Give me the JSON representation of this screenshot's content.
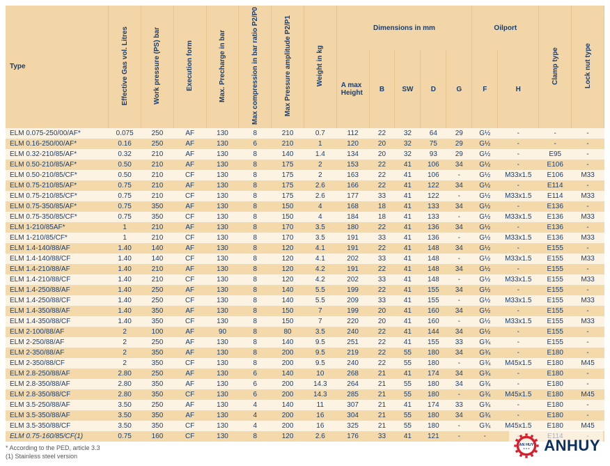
{
  "headers": {
    "type": "Type",
    "gasVol": "Effective Gas vol. Litres",
    "workPressure": "Work pressure (PS) bar",
    "execForm": "Execution form",
    "maxPrecharge": "Max. Precharge in bar",
    "maxCompression": "Max compression in bar ratio P2/P0",
    "maxPressureAmp": "Max Pressure amplitude P2/P1",
    "weight": "Weight in kg",
    "dimensions": "Dimensions in mm",
    "a": "A max Height",
    "b": "B",
    "sw": "SW",
    "d": "D",
    "g": "G",
    "oilport": "Oilport",
    "f": "F",
    "h": "H",
    "clamp": "Clamp type",
    "lock": "Lock nut type"
  },
  "rows": [
    {
      "type": "ELM 0.075-250/00/AF*",
      "gas": "0.075",
      "wp": "250",
      "ef": "AF",
      "mp": "130",
      "mc": "8",
      "mpa": "210",
      "wt": "0.7",
      "a": "112",
      "b": "22",
      "sw": "32",
      "d": "64",
      "g": "29",
      "f": "G½",
      "h": "-",
      "clamp": "-",
      "lock": "-"
    },
    {
      "type": "ELM 0.16-250/00/AF*",
      "gas": "0.16",
      "wp": "250",
      "ef": "AF",
      "mp": "130",
      "mc": "6",
      "mpa": "210",
      "wt": "1",
      "a": "120",
      "b": "20",
      "sw": "32",
      "d": "75",
      "g": "29",
      "f": "G½",
      "h": "-",
      "clamp": "-",
      "lock": "-"
    },
    {
      "type": "ELM 0.32-210/85/AF*",
      "gas": "0.32",
      "wp": "210",
      "ef": "AF",
      "mp": "130",
      "mc": "8",
      "mpa": "140",
      "wt": "1.4",
      "a": "134",
      "b": "20",
      "sw": "32",
      "d": "93",
      "g": "29",
      "f": "G½",
      "h": "-",
      "clamp": "E95",
      "lock": "-"
    },
    {
      "type": "ELM 0.50-210/85/AF*",
      "gas": "0.50",
      "wp": "210",
      "ef": "AF",
      "mp": "130",
      "mc": "8",
      "mpa": "175",
      "wt": "2",
      "a": "153",
      "b": "22",
      "sw": "41",
      "d": "106",
      "g": "34",
      "f": "G½",
      "h": "-",
      "clamp": "E106",
      "lock": "-"
    },
    {
      "type": "ELM 0.50-210/85/CF*",
      "gas": "0.50",
      "wp": "210",
      "ef": "CF",
      "mp": "130",
      "mc": "8",
      "mpa": "175",
      "wt": "2",
      "a": "163",
      "b": "22",
      "sw": "41",
      "d": "106",
      "g": "-",
      "f": "G½",
      "h": "M33x1.5",
      "clamp": "E106",
      "lock": "M33"
    },
    {
      "type": "ELM 0.75-210/85/AF*",
      "gas": "0.75",
      "wp": "210",
      "ef": "AF",
      "mp": "130",
      "mc": "8",
      "mpa": "175",
      "wt": "2.6",
      "a": "166",
      "b": "22",
      "sw": "41",
      "d": "122",
      "g": "34",
      "f": "G½",
      "h": "-",
      "clamp": "E114",
      "lock": "-"
    },
    {
      "type": "ELM 0.75-210/85/CF*",
      "gas": "0.75",
      "wp": "210",
      "ef": "CF",
      "mp": "130",
      "mc": "8",
      "mpa": "175",
      "wt": "2.6",
      "a": "177",
      "b": "33",
      "sw": "41",
      "d": "122",
      "g": "-",
      "f": "G½",
      "h": "M33x1.5",
      "clamp": "E114",
      "lock": "M33"
    },
    {
      "type": "ELM 0.75-350/85/AF*",
      "gas": "0.75",
      "wp": "350",
      "ef": "AF",
      "mp": "130",
      "mc": "8",
      "mpa": "150",
      "wt": "4",
      "a": "168",
      "b": "18",
      "sw": "41",
      "d": "133",
      "g": "34",
      "f": "G½",
      "h": "-",
      "clamp": "E136",
      "lock": "-"
    },
    {
      "type": "ELM 0.75-350/85/CF*",
      "gas": "0.75",
      "wp": "350",
      "ef": "CF",
      "mp": "130",
      "mc": "8",
      "mpa": "150",
      "wt": "4",
      "a": "184",
      "b": "18",
      "sw": "41",
      "d": "133",
      "g": "-",
      "f": "G½",
      "h": "M33x1.5",
      "clamp": "E136",
      "lock": "M33"
    },
    {
      "type": "ELM 1-210/85AF*",
      "gas": "1",
      "wp": "210",
      "ef": "AF",
      "mp": "130",
      "mc": "8",
      "mpa": "170",
      "wt": "3.5",
      "a": "180",
      "b": "22",
      "sw": "41",
      "d": "136",
      "g": "34",
      "f": "G½",
      "h": "-",
      "clamp": "E136",
      "lock": "-"
    },
    {
      "type": "ELM 1-210/85/CF*",
      "gas": "1",
      "wp": "210",
      "ef": "CF",
      "mp": "130",
      "mc": "8",
      "mpa": "170",
      "wt": "3.5",
      "a": "191",
      "b": "33",
      "sw": "41",
      "d": "136",
      "g": "-",
      "f": "G½",
      "h": "M33x1.5",
      "clamp": "E136",
      "lock": "M33"
    },
    {
      "type": "ELM 1.4-140/88/AF",
      "gas": "1.40",
      "wp": "140",
      "ef": "AF",
      "mp": "130",
      "mc": "8",
      "mpa": "120",
      "wt": "4.1",
      "a": "191",
      "b": "22",
      "sw": "41",
      "d": "148",
      "g": "34",
      "f": "G½",
      "h": "-",
      "clamp": "E155",
      "lock": "-"
    },
    {
      "type": "ELM 1.4-140/88/CF",
      "gas": "1.40",
      "wp": "140",
      "ef": "CF",
      "mp": "130",
      "mc": "8",
      "mpa": "120",
      "wt": "4.1",
      "a": "202",
      "b": "33",
      "sw": "41",
      "d": "148",
      "g": "-",
      "f": "G½",
      "h": "M33x1.5",
      "clamp": "E155",
      "lock": "M33"
    },
    {
      "type": "ELM 1.4-210/88/AF",
      "gas": "1.40",
      "wp": "210",
      "ef": "AF",
      "mp": "130",
      "mc": "8",
      "mpa": "120",
      "wt": "4.2",
      "a": "191",
      "b": "22",
      "sw": "41",
      "d": "148",
      "g": "34",
      "f": "G½",
      "h": "-",
      "clamp": "E155",
      "lock": "-"
    },
    {
      "type": "ELM 1.4-210/88/CF",
      "gas": "1.40",
      "wp": "210",
      "ef": "CF",
      "mp": "130",
      "mc": "8",
      "mpa": "120",
      "wt": "4.2",
      "a": "202",
      "b": "33",
      "sw": "41",
      "d": "148",
      "g": "-",
      "f": "G½",
      "h": "M33x1.5",
      "clamp": "E155",
      "lock": "M33"
    },
    {
      "type": "ELM 1.4-250/88/AF",
      "gas": "1.40",
      "wp": "250",
      "ef": "AF",
      "mp": "130",
      "mc": "8",
      "mpa": "140",
      "wt": "5.5",
      "a": "199",
      "b": "22",
      "sw": "41",
      "d": "155",
      "g": "34",
      "f": "G½",
      "h": "-",
      "clamp": "E155",
      "lock": "-"
    },
    {
      "type": "ELM 1.4-250/88/CF",
      "gas": "1.40",
      "wp": "250",
      "ef": "CF",
      "mp": "130",
      "mc": "8",
      "mpa": "140",
      "wt": "5.5",
      "a": "209",
      "b": "33",
      "sw": "41",
      "d": "155",
      "g": "-",
      "f": "G½",
      "h": "M33x1.5",
      "clamp": "E155",
      "lock": "M33"
    },
    {
      "type": "ELM 1.4-350/88/AF",
      "gas": "1.40",
      "wp": "350",
      "ef": "AF",
      "mp": "130",
      "mc": "8",
      "mpa": "150",
      "wt": "7",
      "a": "199",
      "b": "20",
      "sw": "41",
      "d": "160",
      "g": "34",
      "f": "G½",
      "h": "-",
      "clamp": "E155",
      "lock": "-"
    },
    {
      "type": "ELM 1.4-350/88/CF",
      "gas": "1.40",
      "wp": "350",
      "ef": "CF",
      "mp": "130",
      "mc": "8",
      "mpa": "150",
      "wt": "7",
      "a": "220",
      "b": "20",
      "sw": "41",
      "d": "160",
      "g": "-",
      "f": "G½",
      "h": "M33x1.5",
      "clamp": "E155",
      "lock": "M33"
    },
    {
      "type": "ELM 2-100/88/AF",
      "gas": "2",
      "wp": "100",
      "ef": "AF",
      "mp": "90",
      "mc": "8",
      "mpa": "80",
      "wt": "3.5",
      "a": "240",
      "b": "22",
      "sw": "41",
      "d": "144",
      "g": "34",
      "f": "G½",
      "h": "-",
      "clamp": "E155",
      "lock": "-"
    },
    {
      "type": "ELM 2-250/88/AF",
      "gas": "2",
      "wp": "250",
      "ef": "AF",
      "mp": "130",
      "mc": "8",
      "mpa": "140",
      "wt": "9.5",
      "a": "251",
      "b": "22",
      "sw": "41",
      "d": "155",
      "g": "33",
      "f": "G¾",
      "h": "-",
      "clamp": "E155",
      "lock": "-"
    },
    {
      "type": "ELM 2-350/88/AF",
      "gas": "2",
      "wp": "350",
      "ef": "AF",
      "mp": "130",
      "mc": "8",
      "mpa": "200",
      "wt": "9.5",
      "a": "219",
      "b": "22",
      "sw": "55",
      "d": "180",
      "g": "34",
      "f": "G¾",
      "h": "-",
      "clamp": "E180",
      "lock": "-"
    },
    {
      "type": "ELM 2-350/88/CF",
      "gas": "2",
      "wp": "350",
      "ef": "CF",
      "mp": "130",
      "mc": "8",
      "mpa": "200",
      "wt": "9.5",
      "a": "240",
      "b": "22",
      "sw": "55",
      "d": "180",
      "g": "-",
      "f": "G¾",
      "h": "M45x1.5",
      "clamp": "E180",
      "lock": "M45"
    },
    {
      "type": "ELM 2.8-250/88/AF",
      "gas": "2.80",
      "wp": "250",
      "ef": "AF",
      "mp": "130",
      "mc": "6",
      "mpa": "140",
      "wt": "10",
      "a": "268",
      "b": "21",
      "sw": "41",
      "d": "174",
      "g": "34",
      "f": "G¾",
      "h": "-",
      "clamp": "E180",
      "lock": "-"
    },
    {
      "type": "ELM 2.8-350/88/AF",
      "gas": "2.80",
      "wp": "350",
      "ef": "AF",
      "mp": "130",
      "mc": "6",
      "mpa": "200",
      "wt": "14.3",
      "a": "264",
      "b": "21",
      "sw": "55",
      "d": "180",
      "g": "34",
      "f": "G¾",
      "h": "-",
      "clamp": "E180",
      "lock": "-"
    },
    {
      "type": "ELM 2.8-350/88/CF",
      "gas": "2.80",
      "wp": "350",
      "ef": "CF",
      "mp": "130",
      "mc": "6",
      "mpa": "200",
      "wt": "14.3",
      "a": "285",
      "b": "21",
      "sw": "55",
      "d": "180",
      "g": "-",
      "f": "G¾",
      "h": "M45x1.5",
      "clamp": "E180",
      "lock": "M45"
    },
    {
      "type": "ELM 3.5-250/88/AF",
      "gas": "3.50",
      "wp": "250",
      "ef": "AF",
      "mp": "130",
      "mc": "4",
      "mpa": "140",
      "wt": "11",
      "a": "307",
      "b": "21",
      "sw": "41",
      "d": "174",
      "g": "33",
      "f": "G¾",
      "h": "-",
      "clamp": "E180",
      "lock": "-"
    },
    {
      "type": "ELM 3.5-350/88/AF",
      "gas": "3.50",
      "wp": "350",
      "ef": "AF",
      "mp": "130",
      "mc": "4",
      "mpa": "200",
      "wt": "16",
      "a": "304",
      "b": "21",
      "sw": "55",
      "d": "180",
      "g": "34",
      "f": "G¾",
      "h": "-",
      "clamp": "E180",
      "lock": "-"
    },
    {
      "type": "ELM 3.5-350/88/CF",
      "gas": "3.50",
      "wp": "350",
      "ef": "CF",
      "mp": "130",
      "mc": "4",
      "mpa": "200",
      "wt": "16",
      "a": "325",
      "b": "21",
      "sw": "55",
      "d": "180",
      "g": "-",
      "f": "G¾",
      "h": "M45x1.5",
      "clamp": "E180",
      "lock": "M45"
    },
    {
      "type": "ELM 0.75-160/85/CF(1)",
      "gas": "0.75",
      "wp": "160",
      "ef": "CF",
      "mp": "130",
      "mc": "8",
      "mpa": "120",
      "wt": "2.6",
      "a": "176",
      "b": "33",
      "sw": "41",
      "d": "121",
      "g": "-",
      "f": "-",
      "h": "-",
      "clamp": "E114",
      "lock": "-",
      "italic": true
    }
  ],
  "footnotes": {
    "l1": "* According to the PED, article 3.3",
    "l2": "(1) Stainless steel version"
  },
  "logo": {
    "text": "ANHUY"
  }
}
